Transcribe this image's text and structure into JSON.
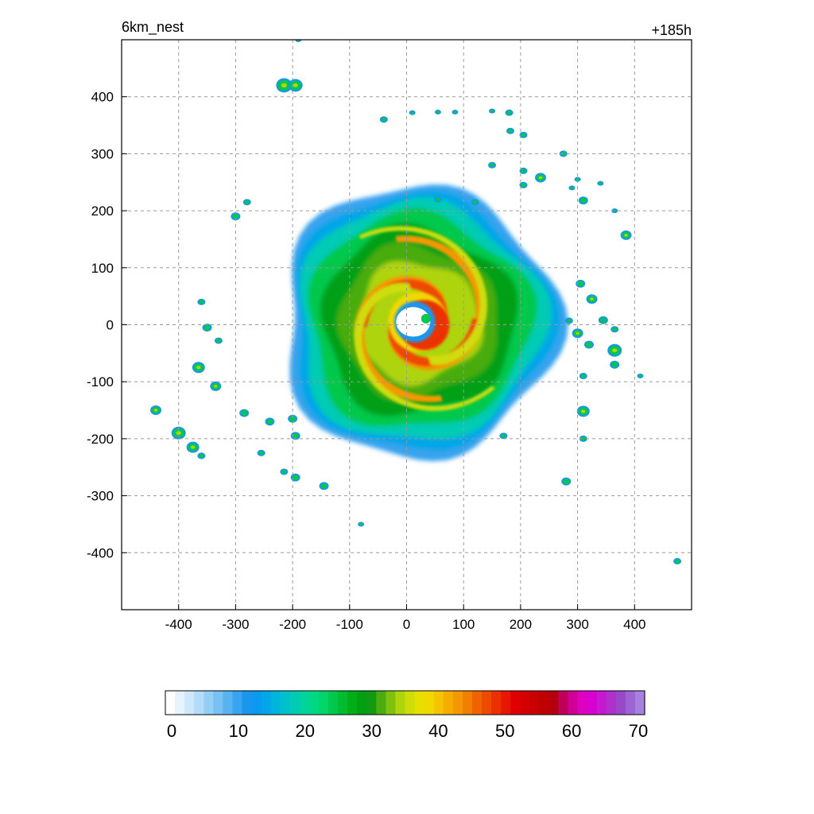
{
  "chart_data": {
    "type": "heatmap",
    "title_left": "6km_nest",
    "title_right": "+185h",
    "xlabel": "",
    "ylabel": "",
    "xlim": [
      -500,
      500
    ],
    "ylim": [
      -500,
      500
    ],
    "x_ticks": [
      -400,
      -300,
      -200,
      -100,
      0,
      100,
      200,
      300,
      400
    ],
    "y_ticks": [
      -400,
      -300,
      -200,
      -100,
      0,
      100,
      200,
      300,
      400
    ],
    "grid": true,
    "colorbar": {
      "range": [
        0,
        70
      ],
      "tick_values": [
        0,
        10,
        20,
        30,
        40,
        50,
        60,
        70
      ],
      "tick_labels": [
        "0",
        "10",
        "20",
        "30",
        "40",
        "50",
        "60",
        "70"
      ],
      "colors": [
        "#ffffff",
        "#e6f3fd",
        "#cde8fb",
        "#b2dcf9",
        "#96cff6",
        "#78c1f4",
        "#59b3f1",
        "#38a3ee",
        "#1a96ec",
        "#0a9af0",
        "#00a6e8",
        "#00b4dc",
        "#00c0cc",
        "#00cbb4",
        "#00d49a",
        "#00d883",
        "#00d46a",
        "#00c84c",
        "#00bc30",
        "#00ae18",
        "#00a012",
        "#129a10",
        "#4aac10",
        "#7ec20e",
        "#aed40c",
        "#cedd08",
        "#e6e000",
        "#f0d800",
        "#f4c400",
        "#f5ae00",
        "#f49800",
        "#f28000",
        "#f06400",
        "#ee4a00",
        "#ec3000",
        "#e81800",
        "#e00000",
        "#d40000",
        "#c80000",
        "#be0000",
        "#b4000e",
        "#c0005a",
        "#d00094",
        "#de00c0",
        "#d800d0",
        "#c618d0",
        "#b030cc",
        "#9a48c8",
        "#9c64d4",
        "#a880e0"
      ]
    },
    "field": {
      "note_units": "km",
      "vortex_center": [
        20,
        5
      ],
      "eye_radius_km": 30,
      "rainband_outer_radius_km": 230,
      "peak_value": 50
    }
  }
}
